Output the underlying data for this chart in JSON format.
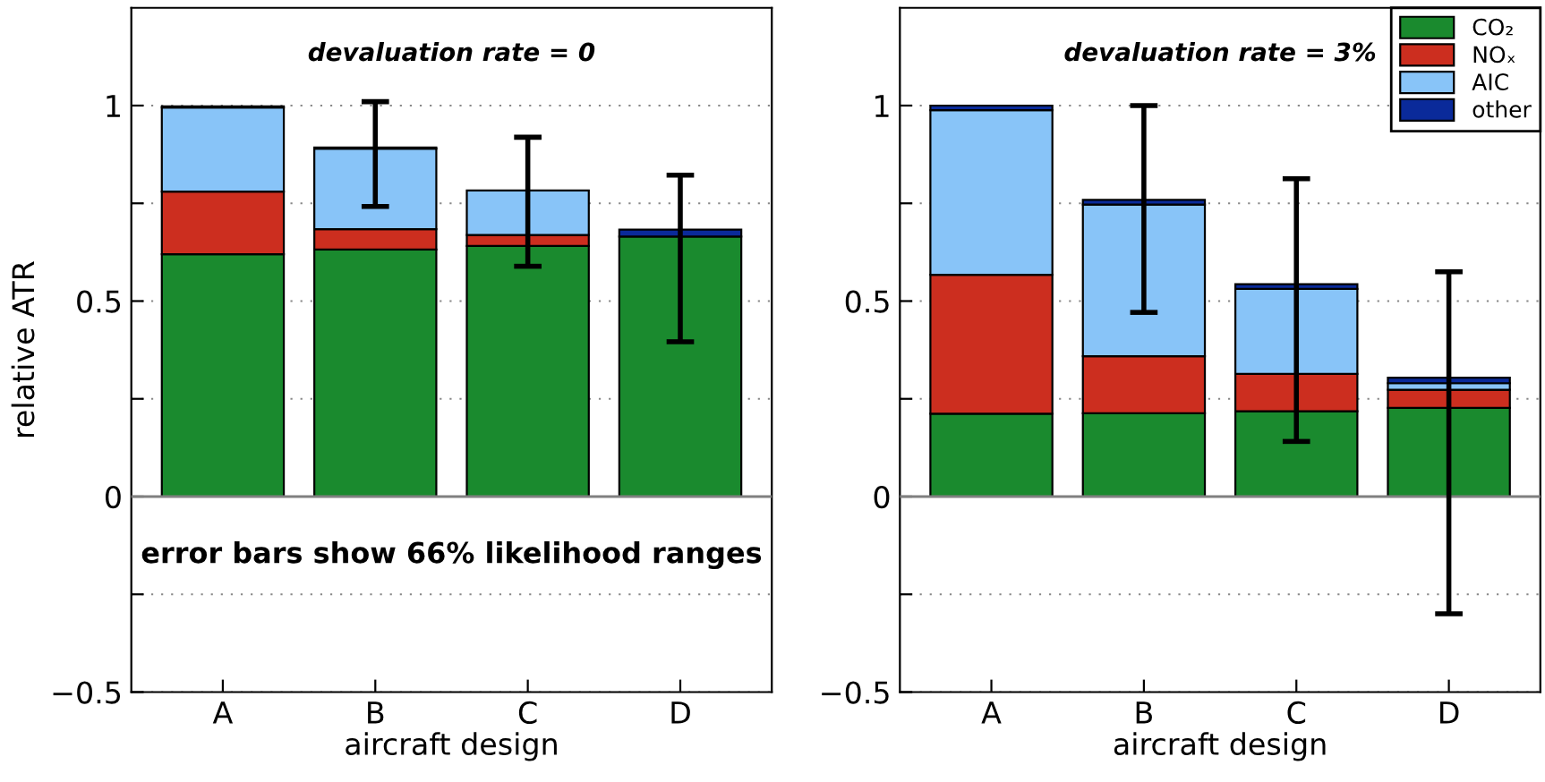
{
  "chart_data": [
    {
      "type": "bar",
      "stacked": true,
      "title": "devaluation rate = 0",
      "xlabel": "aircraft design",
      "ylabel": "relative ATR",
      "categories": [
        "A",
        "B",
        "C",
        "D"
      ],
      "series": [
        {
          "color": "#1a8a2e",
          "values": [
            0.62,
            0.632,
            0.641,
            0.665
          ],
          "errors": [
            null,
            [
              0.742,
              1.01
            ],
            [
              0.589,
              0.919
            ],
            [
              0.396,
              0.822
            ]
          ]
        },
        {
          "color": "#cc2e1f",
          "values": [
            0.16,
            0.052,
            0.028,
            null
          ]
        },
        {
          "color": "#88c4f8",
          "values": [
            0.215,
            0.206,
            0.114,
            null
          ]
        },
        {
          "color": "#0a2a9a",
          "values": [
            0.003,
            0.003,
            null,
            0.018
          ]
        }
      ],
      "ylim": [
        -0.5,
        1.25
      ],
      "yticks": [
        {
          "value": -0.5,
          "label": "−0.5"
        },
        {
          "value": -0.25,
          "label": null
        },
        0,
        {
          "value": 0.25,
          "label": null
        },
        0.5,
        {
          "value": 0.75,
          "label": null
        },
        1
      ],
      "grid": "y",
      "legend": false,
      "ref_lines": [
        {
          "axis": "y",
          "value": 0,
          "color": "#808080"
        }
      ],
      "annotations": [
        "error bars show 66% likelihood ranges"
      ]
    },
    {
      "type": "bar",
      "stacked": true,
      "title": "devaluation rate = 3%",
      "xlabel": "aircraft design",
      "categories": [
        "A",
        "B",
        "C",
        "D"
      ],
      "series": [
        {
          "name": "CO₂",
          "color": "#1a8a2e",
          "values": [
            0.212,
            0.213,
            0.218,
            0.227
          ]
        },
        {
          "name": "NOₓ",
          "color": "#cc2e1f",
          "values": [
            0.355,
            0.146,
            0.096,
            0.046
          ]
        },
        {
          "name": "AIC",
          "color": "#88c4f8",
          "values": [
            0.421,
            0.388,
            0.217,
            0.017
          ]
        },
        {
          "name": "other",
          "color": "#0a2a9a",
          "values": [
            0.012,
            0.012,
            0.012,
            0.014
          ],
          "errors": [
            null,
            [
              0.471,
              1.0
            ],
            [
              0.141,
              0.813
            ],
            [
              -0.3,
              0.575
            ]
          ]
        }
      ],
      "ylim": [
        -0.5,
        1.25
      ],
      "yticks": [
        {
          "value": -0.5,
          "label": "−0.5"
        },
        {
          "value": -0.25,
          "label": null
        },
        0,
        {
          "value": 0.25,
          "label": null
        },
        0.5,
        {
          "value": 0.75,
          "label": null
        },
        1
      ],
      "grid": "y",
      "legend": "top right",
      "ref_lines": [
        {
          "axis": "y",
          "value": 0,
          "color": "#808080"
        }
      ]
    }
  ]
}
